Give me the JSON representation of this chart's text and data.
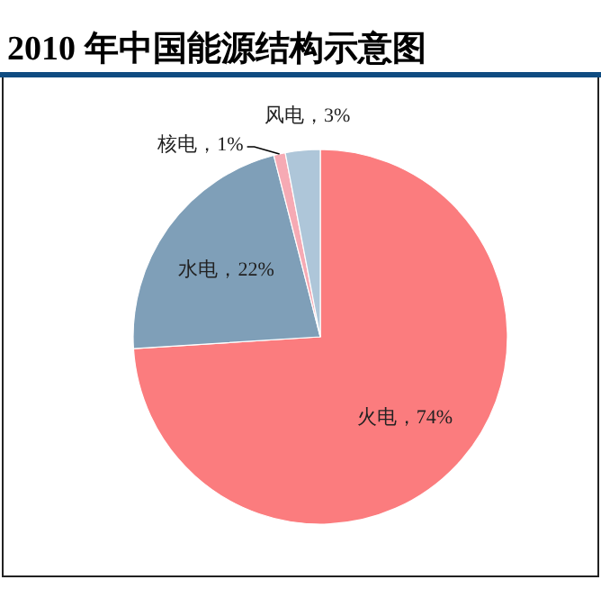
{
  "chart_data": {
    "type": "pie",
    "title": "2010 年中国能源结构示意图",
    "categories": [
      "火电",
      "水电",
      "核电",
      "风电"
    ],
    "values": [
      74,
      22,
      1,
      3
    ],
    "colors": [
      "#fb7c7e",
      "#7f9fb8",
      "#f6aab4",
      "#aec6d9"
    ],
    "value_labels": [
      "，74%",
      "，22%",
      "，1%",
      "，3%"
    ]
  }
}
